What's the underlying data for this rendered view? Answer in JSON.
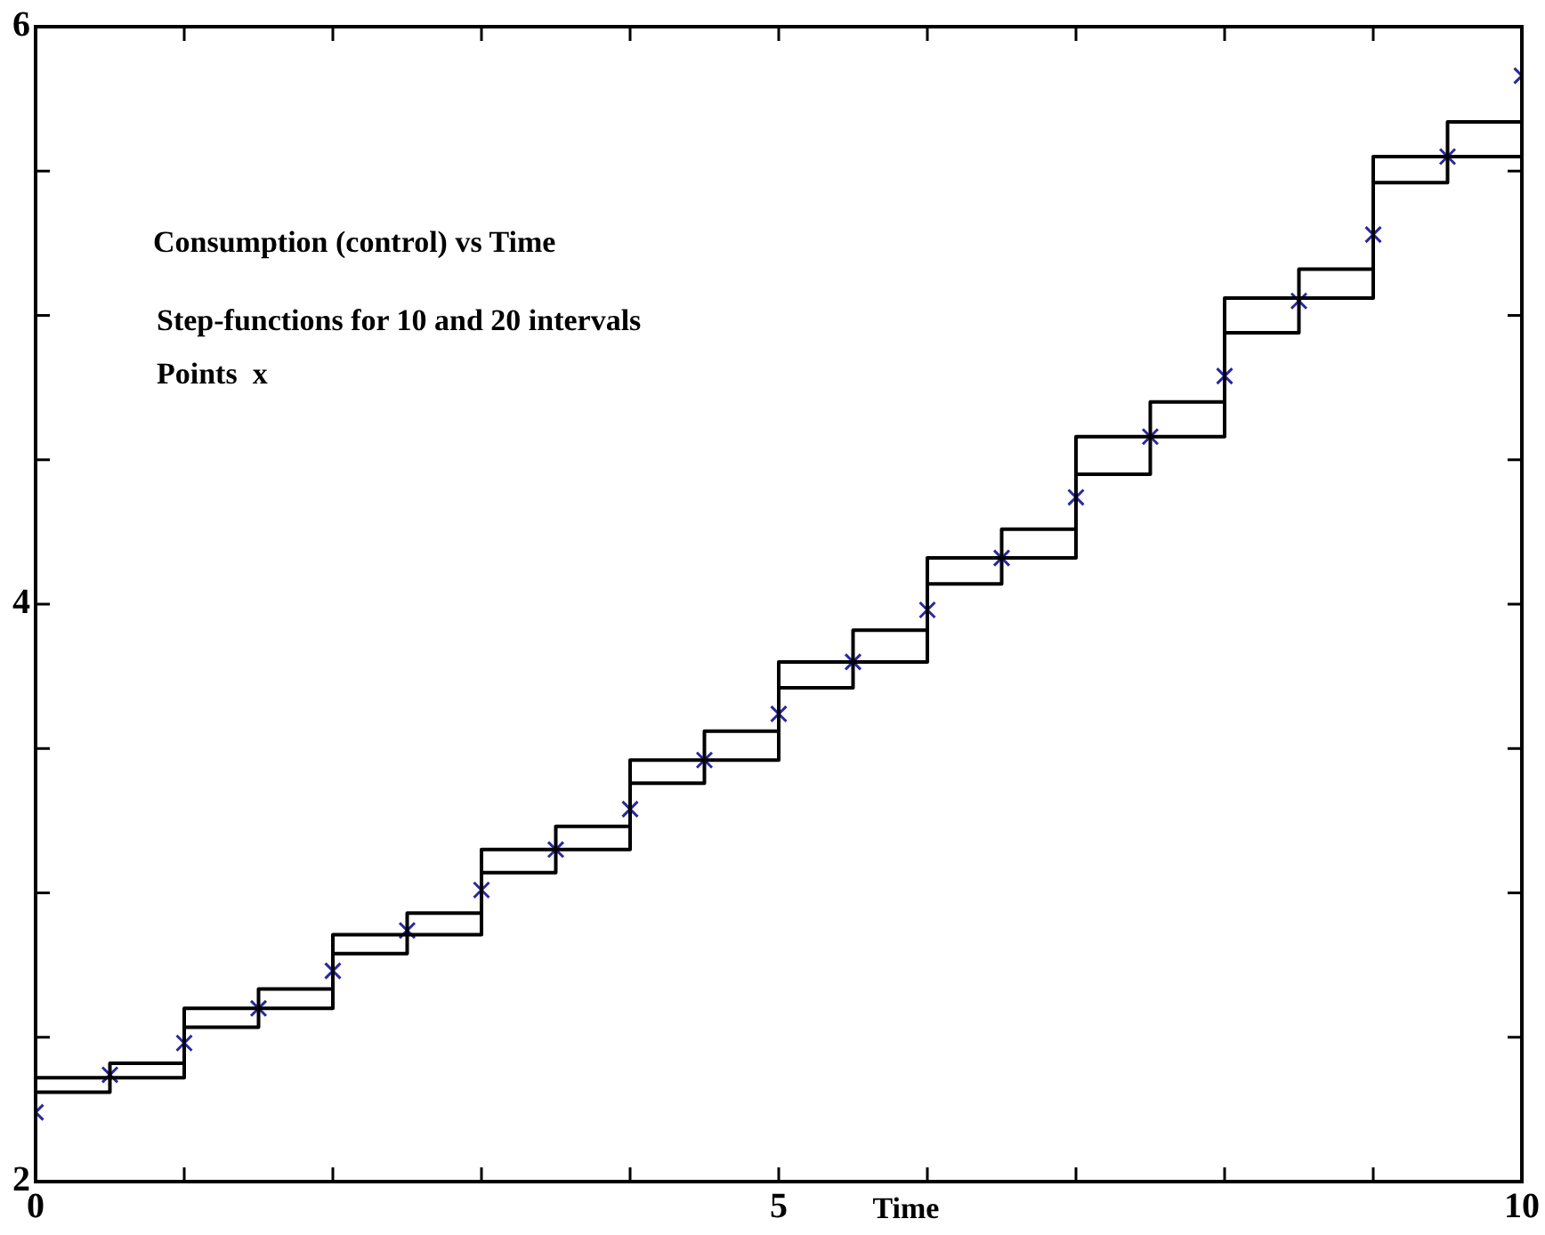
{
  "chart_data": {
    "type": "step",
    "title": "Consumption (control) vs Time",
    "xlabel": "Time",
    "annotations": [
      "Step-functions for 10 and 20 intervals",
      "Points  x"
    ],
    "series": [
      {
        "color": "#000000",
        "x": [
          0,
          1,
          2,
          3,
          4,
          5,
          6,
          7,
          8,
          9,
          10
        ],
        "values": [
          2.36,
          2.6,
          2.855,
          3.15,
          3.46,
          3.8,
          4.16,
          4.58,
          5.06,
          5.55,
          5.55
        ]
      },
      {
        "color": "#000000",
        "x": [
          0,
          0.5,
          1,
          1.5,
          2,
          2.5,
          3,
          3.5,
          4,
          4.5,
          5,
          5.5,
          6,
          6.5,
          7,
          7.5,
          8,
          8.5,
          9,
          9.5,
          10
        ],
        "values": [
          2.31,
          2.41,
          2.535,
          2.667,
          2.79,
          2.93,
          3.07,
          3.23,
          3.38,
          3.56,
          3.71,
          3.91,
          4.07,
          4.26,
          4.45,
          4.7,
          4.94,
          5.16,
          5.46,
          5.67,
          5.67
        ]
      },
      {
        "type": "scatter",
        "color": "#2828a0",
        "marker": "cross",
        "x": [
          0,
          0.5,
          1,
          1.5,
          2,
          2.5,
          3,
          3.5,
          4,
          4.5,
          5,
          5.5,
          6,
          6.5,
          7,
          7.5,
          8,
          8.5,
          9,
          9.5,
          10
        ],
        "values": [
          2.24,
          2.37,
          2.48,
          2.6,
          2.73,
          2.87,
          3.01,
          3.15,
          3.29,
          3.46,
          3.62,
          3.8,
          3.98,
          4.16,
          4.37,
          4.58,
          4.79,
          5.05,
          5.28,
          5.55,
          5.83
        ]
      }
    ],
    "xlim": [
      0,
      10
    ],
    "xticks": [
      0,
      {
        "value": 1,
        "label": null
      },
      {
        "value": 2,
        "label": null
      },
      {
        "value": 3,
        "label": null
      },
      {
        "value": 4,
        "label": null
      },
      5,
      {
        "value": 6,
        "label": null
      },
      {
        "value": 7,
        "label": null
      },
      {
        "value": 8,
        "label": null
      },
      {
        "value": 9,
        "label": null
      },
      10
    ],
    "ylim": [
      2,
      6
    ],
    "yticks": [
      2,
      {
        "value": 2.5,
        "label": null
      },
      {
        "value": 3,
        "label": null
      },
      {
        "value": 3.5,
        "label": null
      },
      4,
      {
        "value": 4.5,
        "label": null
      },
      {
        "value": 5,
        "label": null
      },
      {
        "value": 5.5,
        "label": null
      },
      6
    ],
    "grid": false,
    "legend": false
  }
}
